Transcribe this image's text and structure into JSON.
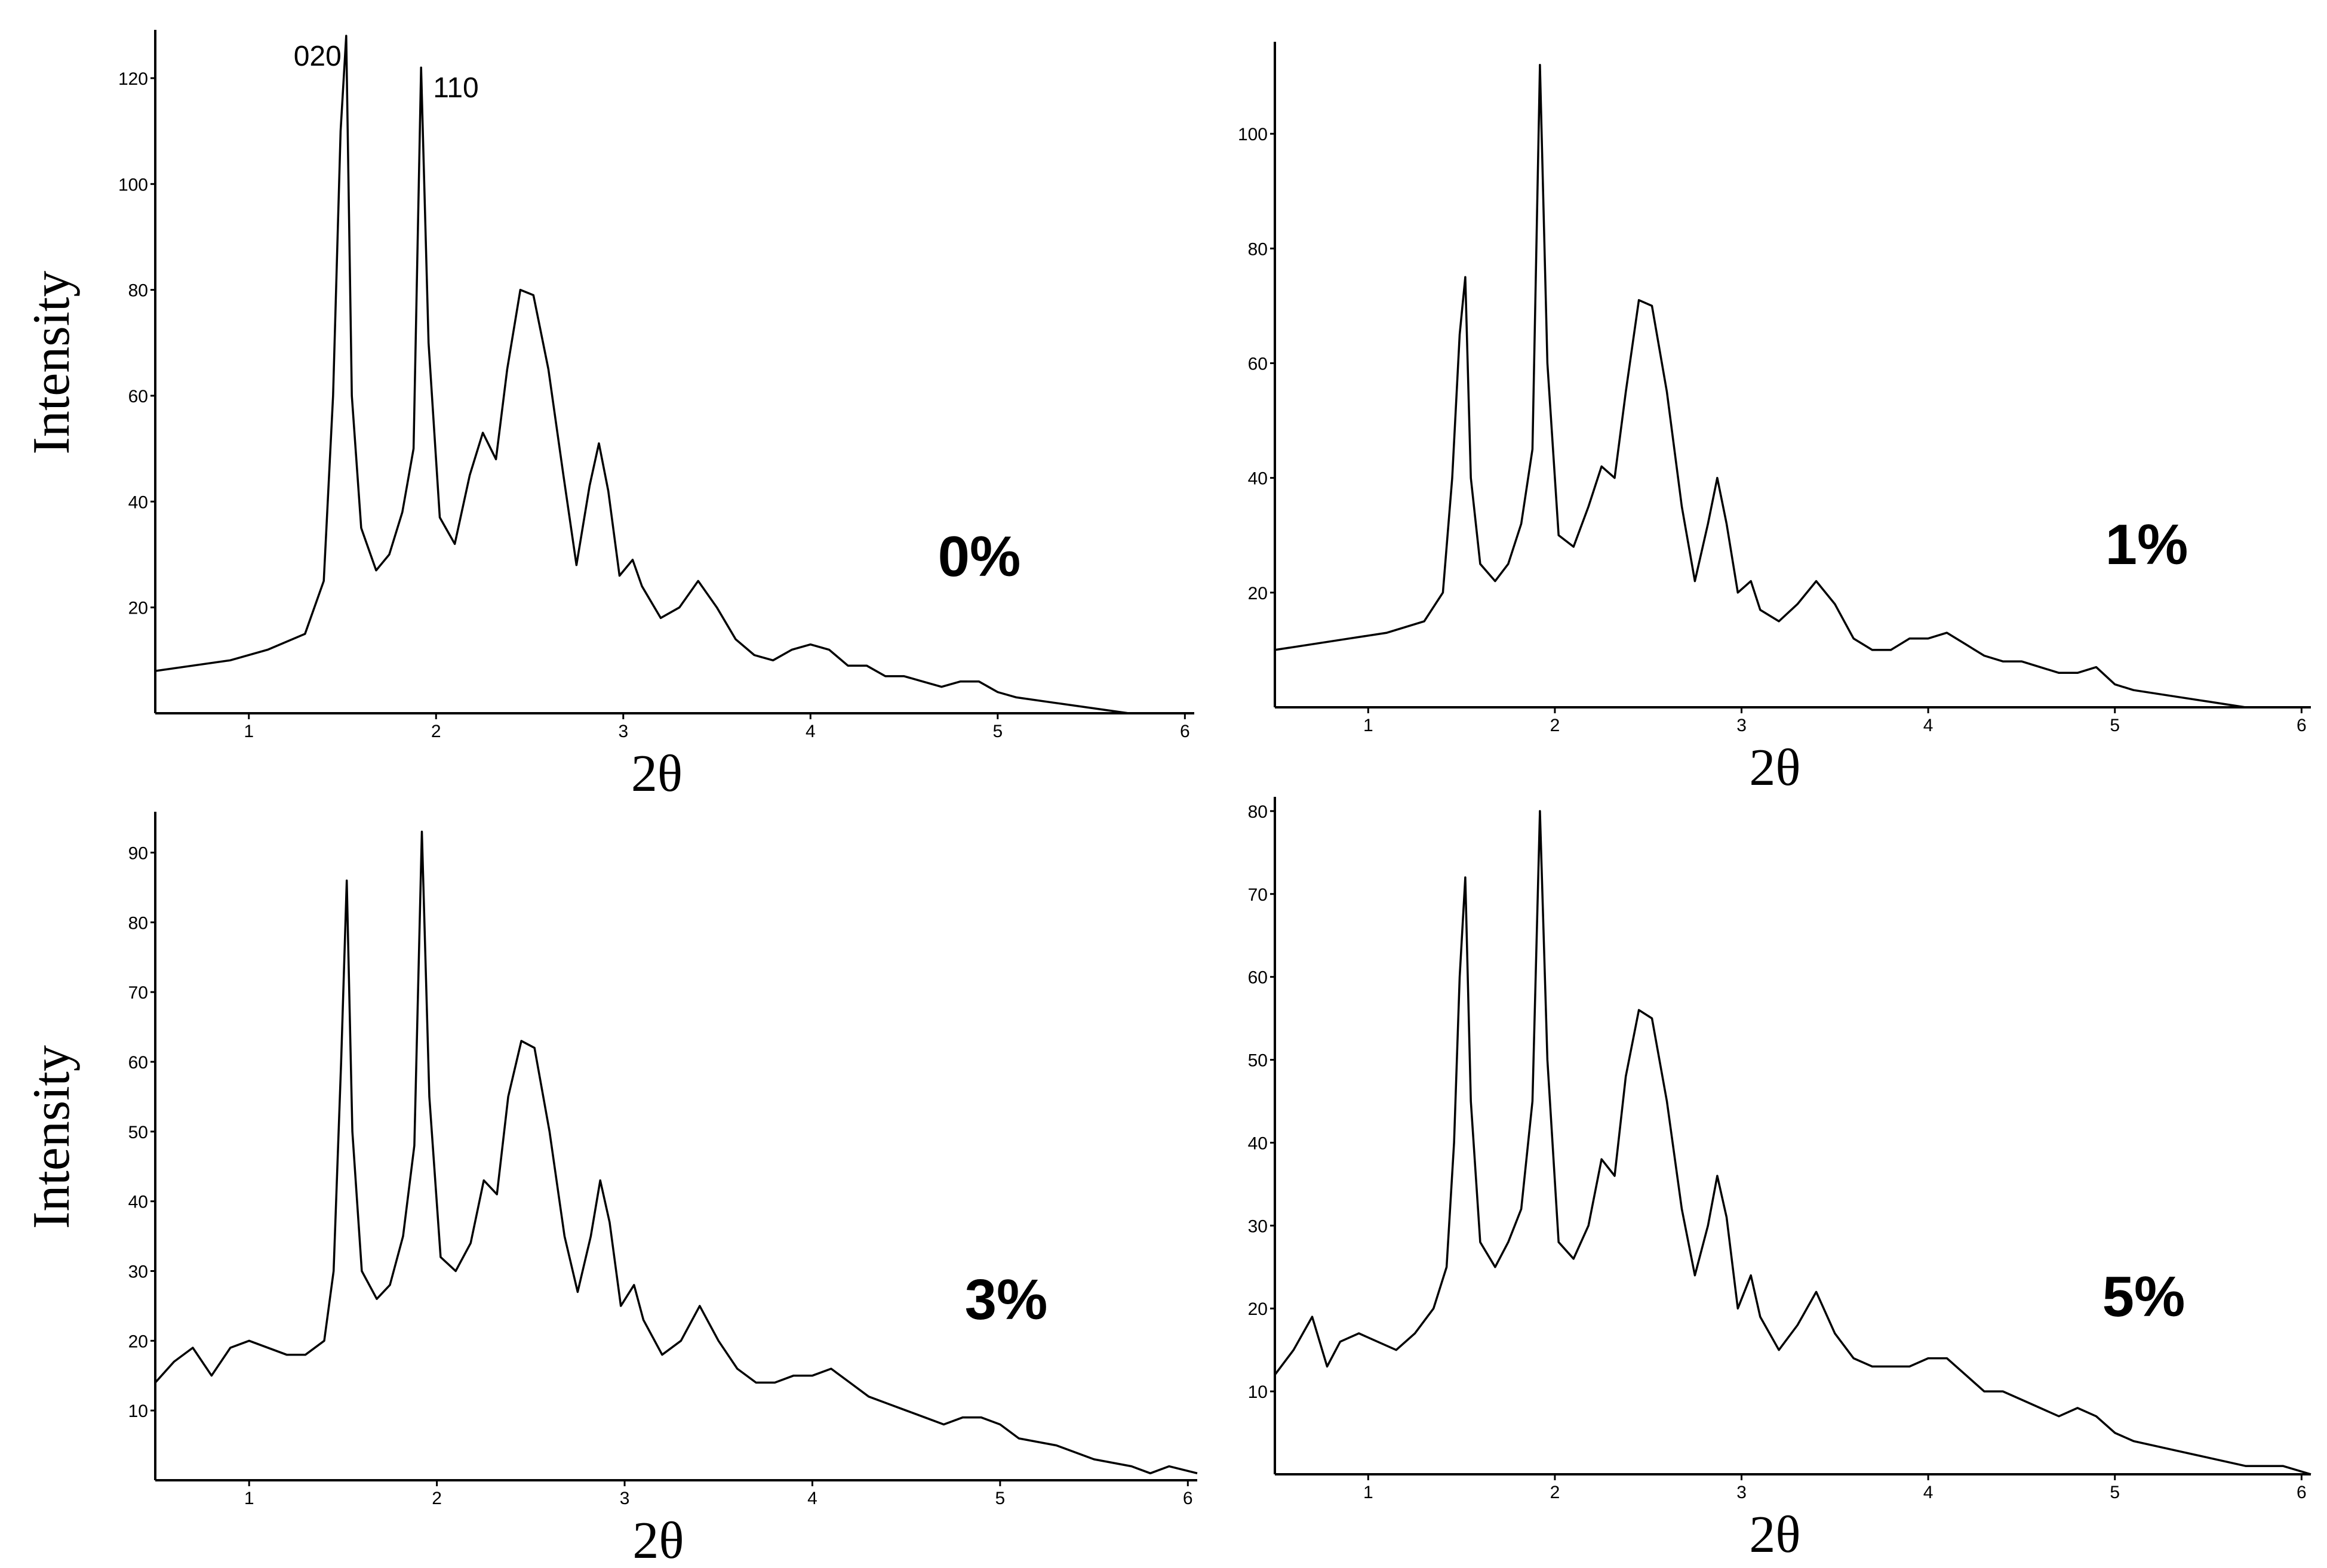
{
  "chart_data": [
    {
      "type": "line",
      "panel_label": "0%",
      "xlabel": "2θ",
      "ylabel": "Intensity",
      "xlim": [
        0.5,
        6.05
      ],
      "ylim": [
        0,
        128
      ],
      "xticks": [
        "1",
        "2",
        "3",
        "4",
        "5",
        "6"
      ],
      "yticks": [
        "20",
        "40",
        "60",
        "80",
        "100",
        "120"
      ],
      "annotations": [
        {
          "text": "020",
          "x": 1.52
        },
        {
          "text": "110",
          "x": 1.92
        }
      ],
      "series": [
        {
          "x": [
            0.5,
            0.7,
            0.9,
            1.1,
            1.3,
            1.4,
            1.45,
            1.49,
            1.52,
            1.55,
            1.6,
            1.68,
            1.75,
            1.82,
            1.88,
            1.92,
            1.96,
            2.02,
            2.1,
            2.18,
            2.25,
            2.32,
            2.38,
            2.45,
            2.52,
            2.6,
            2.68,
            2.75,
            2.82,
            2.87,
            2.92,
            2.98,
            3.05,
            3.1,
            3.2,
            3.3,
            3.4,
            3.5,
            3.6,
            3.7,
            3.8,
            3.9,
            4.0,
            4.1,
            4.2,
            4.3,
            4.4,
            4.5,
            4.6,
            4.7,
            4.8,
            4.9,
            5.0,
            5.1,
            5.3,
            5.5,
            5.7,
            5.9,
            6.05
          ],
          "y": [
            8,
            9,
            10,
            12,
            15,
            25,
            60,
            110,
            128,
            60,
            35,
            27,
            30,
            38,
            50,
            122,
            70,
            37,
            32,
            45,
            53,
            48,
            65,
            80,
            79,
            65,
            45,
            28,
            43,
            51,
            42,
            26,
            29,
            24,
            18,
            20,
            25,
            20,
            14,
            11,
            10,
            12,
            13,
            12,
            9,
            9,
            7,
            7,
            6,
            5,
            6,
            6,
            4,
            3,
            2,
            1,
            0,
            0,
            0
          ]
        }
      ]
    },
    {
      "type": "line",
      "panel_label": "1%",
      "xlabel": "2θ",
      "ylabel": "",
      "xlim": [
        0.5,
        6.05
      ],
      "ylim": [
        0,
        115
      ],
      "xticks": [
        "1",
        "2",
        "3",
        "4",
        "5",
        "6"
      ],
      "yticks": [
        "20",
        "40",
        "60",
        "80",
        "100"
      ],
      "annotations": [],
      "series": [
        {
          "x": [
            0.5,
            0.7,
            0.9,
            1.1,
            1.3,
            1.4,
            1.45,
            1.49,
            1.52,
            1.55,
            1.6,
            1.68,
            1.75,
            1.82,
            1.88,
            1.92,
            1.96,
            2.02,
            2.1,
            2.18,
            2.25,
            2.32,
            2.38,
            2.45,
            2.52,
            2.6,
            2.68,
            2.75,
            2.82,
            2.87,
            2.92,
            2.98,
            3.05,
            3.1,
            3.2,
            3.3,
            3.4,
            3.5,
            3.6,
            3.7,
            3.8,
            3.9,
            4.0,
            4.1,
            4.2,
            4.3,
            4.4,
            4.5,
            4.6,
            4.7,
            4.8,
            4.9,
            5.0,
            5.1,
            5.3,
            5.5,
            5.7,
            5.9,
            6.05
          ],
          "y": [
            10,
            11,
            12,
            13,
            15,
            20,
            40,
            65,
            75,
            40,
            25,
            22,
            25,
            32,
            45,
            112,
            60,
            30,
            28,
            35,
            42,
            40,
            55,
            71,
            70,
            55,
            35,
            22,
            32,
            40,
            32,
            20,
            22,
            17,
            15,
            18,
            22,
            18,
            12,
            10,
            10,
            12,
            12,
            13,
            11,
            9,
            8,
            8,
            7,
            6,
            6,
            7,
            4,
            3,
            2,
            1,
            0,
            0,
            0
          ]
        }
      ]
    },
    {
      "type": "line",
      "panel_label": "3%",
      "xlabel": "2θ",
      "ylabel": "Intensity",
      "xlim": [
        0.5,
        6.05
      ],
      "ylim": [
        0,
        95
      ],
      "xticks": [
        "1",
        "2",
        "3",
        "4",
        "5",
        "6"
      ],
      "yticks": [
        "10",
        "20",
        "30",
        "40",
        "50",
        "60",
        "70",
        "80",
        "90"
      ],
      "annotations": [],
      "series": [
        {
          "x": [
            0.5,
            0.6,
            0.7,
            0.8,
            0.9,
            1.0,
            1.2,
            1.3,
            1.4,
            1.45,
            1.49,
            1.52,
            1.55,
            1.6,
            1.68,
            1.75,
            1.82,
            1.88,
            1.92,
            1.96,
            2.02,
            2.1,
            2.18,
            2.25,
            2.32,
            2.38,
            2.45,
            2.52,
            2.6,
            2.68,
            2.75,
            2.82,
            2.87,
            2.92,
            2.98,
            3.05,
            3.1,
            3.2,
            3.3,
            3.4,
            3.5,
            3.6,
            3.7,
            3.8,
            3.9,
            4.0,
            4.1,
            4.2,
            4.3,
            4.4,
            4.5,
            4.6,
            4.7,
            4.8,
            4.9,
            5.0,
            5.1,
            5.3,
            5.5,
            5.7,
            5.8,
            5.9,
            6.05
          ],
          "y": [
            14,
            17,
            19,
            15,
            19,
            20,
            18,
            18,
            20,
            30,
            60,
            86,
            50,
            30,
            26,
            28,
            35,
            48,
            93,
            55,
            32,
            30,
            34,
            43,
            41,
            55,
            63,
            62,
            50,
            35,
            27,
            35,
            43,
            37,
            25,
            28,
            23,
            18,
            20,
            25,
            20,
            16,
            14,
            14,
            15,
            15,
            16,
            14,
            12,
            11,
            10,
            9,
            8,
            9,
            9,
            8,
            6,
            5,
            3,
            2,
            1,
            2,
            1
          ]
        }
      ]
    },
    {
      "type": "line",
      "panel_label": "5%",
      "xlabel": "2θ",
      "ylabel": "",
      "xlim": [
        0.5,
        6.05
      ],
      "ylim": [
        0,
        81
      ],
      "xticks": [
        "1",
        "2",
        "3",
        "4",
        "5",
        "6"
      ],
      "yticks": [
        "10",
        "20",
        "30",
        "40",
        "50",
        "60",
        "70",
        "80"
      ],
      "annotations": [],
      "series": [
        {
          "x": [
            0.5,
            0.6,
            0.7,
            0.78,
            0.85,
            0.95,
            1.05,
            1.15,
            1.25,
            1.35,
            1.42,
            1.46,
            1.49,
            1.52,
            1.55,
            1.6,
            1.68,
            1.75,
            1.82,
            1.88,
            1.92,
            1.96,
            2.02,
            2.1,
            2.18,
            2.25,
            2.32,
            2.38,
            2.45,
            2.52,
            2.6,
            2.68,
            2.75,
            2.82,
            2.87,
            2.92,
            2.98,
            3.05,
            3.1,
            3.2,
            3.3,
            3.4,
            3.5,
            3.6,
            3.7,
            3.8,
            3.9,
            4.0,
            4.1,
            4.2,
            4.3,
            4.4,
            4.5,
            4.6,
            4.7,
            4.8,
            4.9,
            5.0,
            5.1,
            5.3,
            5.5,
            5.7,
            5.8,
            5.9,
            6.05
          ],
          "y": [
            12,
            15,
            19,
            13,
            16,
            17,
            16,
            15,
            17,
            20,
            25,
            40,
            60,
            72,
            45,
            28,
            25,
            28,
            32,
            45,
            80,
            50,
            28,
            26,
            30,
            38,
            36,
            48,
            56,
            55,
            45,
            32,
            24,
            30,
            36,
            31,
            20,
            24,
            19,
            15,
            18,
            22,
            17,
            14,
            13,
            13,
            13,
            14,
            14,
            12,
            10,
            10,
            9,
            8,
            7,
            8,
            7,
            5,
            4,
            3,
            2,
            1,
            1,
            1,
            0
          ]
        }
      ]
    }
  ]
}
